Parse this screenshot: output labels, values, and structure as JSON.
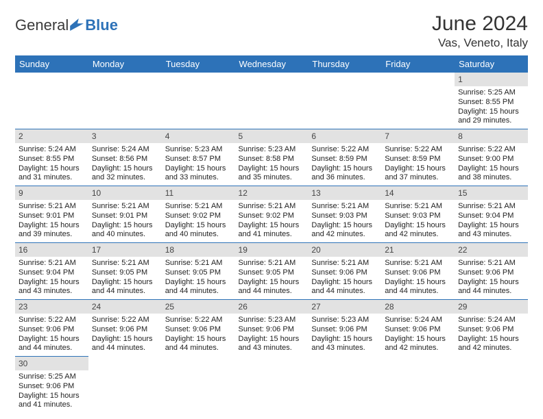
{
  "brand": {
    "part1": "General",
    "part2": "Blue"
  },
  "title": "June 2024",
  "location": "Vas, Veneto, Italy",
  "colors": {
    "header_bg": "#2d72b8",
    "header_text": "#ffffff",
    "daynum_bg": "#e2e2e2",
    "border": "#2d72b8",
    "page_bg": "#ffffff",
    "text": "#222222"
  },
  "weekdays": [
    "Sunday",
    "Monday",
    "Tuesday",
    "Wednesday",
    "Thursday",
    "Friday",
    "Saturday"
  ],
  "weeks": [
    [
      null,
      null,
      null,
      null,
      null,
      null,
      {
        "n": "1",
        "sunrise": "Sunrise: 5:25 AM",
        "sunset": "Sunset: 8:55 PM",
        "daylight1": "Daylight: 15 hours",
        "daylight2": "and 29 minutes."
      }
    ],
    [
      {
        "n": "2",
        "sunrise": "Sunrise: 5:24 AM",
        "sunset": "Sunset: 8:55 PM",
        "daylight1": "Daylight: 15 hours",
        "daylight2": "and 31 minutes."
      },
      {
        "n": "3",
        "sunrise": "Sunrise: 5:24 AM",
        "sunset": "Sunset: 8:56 PM",
        "daylight1": "Daylight: 15 hours",
        "daylight2": "and 32 minutes."
      },
      {
        "n": "4",
        "sunrise": "Sunrise: 5:23 AM",
        "sunset": "Sunset: 8:57 PM",
        "daylight1": "Daylight: 15 hours",
        "daylight2": "and 33 minutes."
      },
      {
        "n": "5",
        "sunrise": "Sunrise: 5:23 AM",
        "sunset": "Sunset: 8:58 PM",
        "daylight1": "Daylight: 15 hours",
        "daylight2": "and 35 minutes."
      },
      {
        "n": "6",
        "sunrise": "Sunrise: 5:22 AM",
        "sunset": "Sunset: 8:59 PM",
        "daylight1": "Daylight: 15 hours",
        "daylight2": "and 36 minutes."
      },
      {
        "n": "7",
        "sunrise": "Sunrise: 5:22 AM",
        "sunset": "Sunset: 8:59 PM",
        "daylight1": "Daylight: 15 hours",
        "daylight2": "and 37 minutes."
      },
      {
        "n": "8",
        "sunrise": "Sunrise: 5:22 AM",
        "sunset": "Sunset: 9:00 PM",
        "daylight1": "Daylight: 15 hours",
        "daylight2": "and 38 minutes."
      }
    ],
    [
      {
        "n": "9",
        "sunrise": "Sunrise: 5:21 AM",
        "sunset": "Sunset: 9:01 PM",
        "daylight1": "Daylight: 15 hours",
        "daylight2": "and 39 minutes."
      },
      {
        "n": "10",
        "sunrise": "Sunrise: 5:21 AM",
        "sunset": "Sunset: 9:01 PM",
        "daylight1": "Daylight: 15 hours",
        "daylight2": "and 40 minutes."
      },
      {
        "n": "11",
        "sunrise": "Sunrise: 5:21 AM",
        "sunset": "Sunset: 9:02 PM",
        "daylight1": "Daylight: 15 hours",
        "daylight2": "and 40 minutes."
      },
      {
        "n": "12",
        "sunrise": "Sunrise: 5:21 AM",
        "sunset": "Sunset: 9:02 PM",
        "daylight1": "Daylight: 15 hours",
        "daylight2": "and 41 minutes."
      },
      {
        "n": "13",
        "sunrise": "Sunrise: 5:21 AM",
        "sunset": "Sunset: 9:03 PM",
        "daylight1": "Daylight: 15 hours",
        "daylight2": "and 42 minutes."
      },
      {
        "n": "14",
        "sunrise": "Sunrise: 5:21 AM",
        "sunset": "Sunset: 9:03 PM",
        "daylight1": "Daylight: 15 hours",
        "daylight2": "and 42 minutes."
      },
      {
        "n": "15",
        "sunrise": "Sunrise: 5:21 AM",
        "sunset": "Sunset: 9:04 PM",
        "daylight1": "Daylight: 15 hours",
        "daylight2": "and 43 minutes."
      }
    ],
    [
      {
        "n": "16",
        "sunrise": "Sunrise: 5:21 AM",
        "sunset": "Sunset: 9:04 PM",
        "daylight1": "Daylight: 15 hours",
        "daylight2": "and 43 minutes."
      },
      {
        "n": "17",
        "sunrise": "Sunrise: 5:21 AM",
        "sunset": "Sunset: 9:05 PM",
        "daylight1": "Daylight: 15 hours",
        "daylight2": "and 44 minutes."
      },
      {
        "n": "18",
        "sunrise": "Sunrise: 5:21 AM",
        "sunset": "Sunset: 9:05 PM",
        "daylight1": "Daylight: 15 hours",
        "daylight2": "and 44 minutes."
      },
      {
        "n": "19",
        "sunrise": "Sunrise: 5:21 AM",
        "sunset": "Sunset: 9:05 PM",
        "daylight1": "Daylight: 15 hours",
        "daylight2": "and 44 minutes."
      },
      {
        "n": "20",
        "sunrise": "Sunrise: 5:21 AM",
        "sunset": "Sunset: 9:06 PM",
        "daylight1": "Daylight: 15 hours",
        "daylight2": "and 44 minutes."
      },
      {
        "n": "21",
        "sunrise": "Sunrise: 5:21 AM",
        "sunset": "Sunset: 9:06 PM",
        "daylight1": "Daylight: 15 hours",
        "daylight2": "and 44 minutes."
      },
      {
        "n": "22",
        "sunrise": "Sunrise: 5:21 AM",
        "sunset": "Sunset: 9:06 PM",
        "daylight1": "Daylight: 15 hours",
        "daylight2": "and 44 minutes."
      }
    ],
    [
      {
        "n": "23",
        "sunrise": "Sunrise: 5:22 AM",
        "sunset": "Sunset: 9:06 PM",
        "daylight1": "Daylight: 15 hours",
        "daylight2": "and 44 minutes."
      },
      {
        "n": "24",
        "sunrise": "Sunrise: 5:22 AM",
        "sunset": "Sunset: 9:06 PM",
        "daylight1": "Daylight: 15 hours",
        "daylight2": "and 44 minutes."
      },
      {
        "n": "25",
        "sunrise": "Sunrise: 5:22 AM",
        "sunset": "Sunset: 9:06 PM",
        "daylight1": "Daylight: 15 hours",
        "daylight2": "and 44 minutes."
      },
      {
        "n": "26",
        "sunrise": "Sunrise: 5:23 AM",
        "sunset": "Sunset: 9:06 PM",
        "daylight1": "Daylight: 15 hours",
        "daylight2": "and 43 minutes."
      },
      {
        "n": "27",
        "sunrise": "Sunrise: 5:23 AM",
        "sunset": "Sunset: 9:06 PM",
        "daylight1": "Daylight: 15 hours",
        "daylight2": "and 43 minutes."
      },
      {
        "n": "28",
        "sunrise": "Sunrise: 5:24 AM",
        "sunset": "Sunset: 9:06 PM",
        "daylight1": "Daylight: 15 hours",
        "daylight2": "and 42 minutes."
      },
      {
        "n": "29",
        "sunrise": "Sunrise: 5:24 AM",
        "sunset": "Sunset: 9:06 PM",
        "daylight1": "Daylight: 15 hours",
        "daylight2": "and 42 minutes."
      }
    ],
    [
      {
        "n": "30",
        "sunrise": "Sunrise: 5:25 AM",
        "sunset": "Sunset: 9:06 PM",
        "daylight1": "Daylight: 15 hours",
        "daylight2": "and 41 minutes."
      },
      null,
      null,
      null,
      null,
      null,
      null
    ]
  ]
}
